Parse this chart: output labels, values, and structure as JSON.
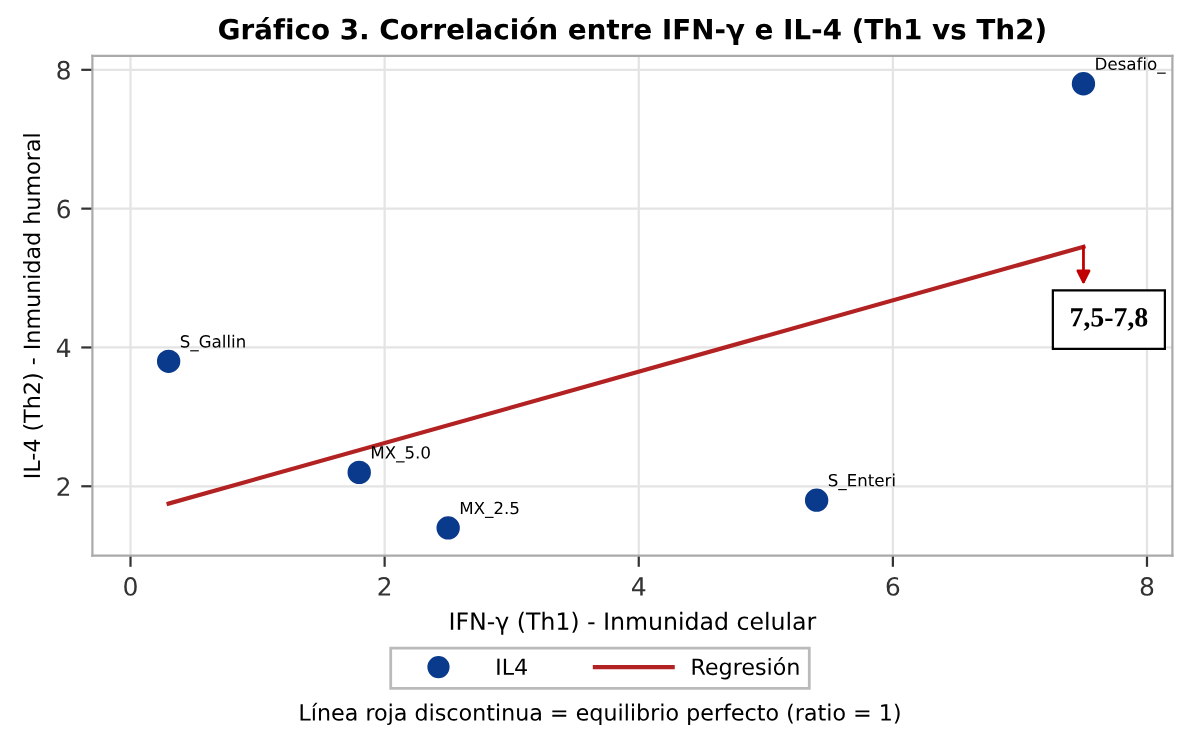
{
  "chart_data": {
    "type": "scatter",
    "title": "Gráfico 3. Correlación entre IFN-γ e IL-4 (Th1 vs Th2)",
    "xlabel": "IFN-γ (Th1) - Inmunidad celular",
    "ylabel": "IL-4 (Th2) - Inmunidad humoral",
    "x": [
      0.3,
      1.8,
      2.5,
      5.4,
      7.5
    ],
    "series": [
      {
        "name": "IL4",
        "color": "#0a3a8c",
        "values": [
          3.8,
          2.2,
          1.4,
          1.8,
          7.8
        ],
        "marker": "circle"
      },
      {
        "name": "Regresión",
        "type": "line",
        "color": "#b22222",
        "x": [
          0.3,
          7.5
        ],
        "values": [
          1.75,
          5.45
        ],
        "line_style": "solid",
        "marker": "none"
      }
    ],
    "annotations": [
      {
        "text": "S_Gallin",
        "x": 0.3,
        "y": 3.8
      },
      {
        "text": "MX_5.0",
        "x": 1.8,
        "y": 2.2
      },
      {
        "text": "MX_2.5",
        "x": 2.5,
        "y": 1.4
      },
      {
        "text": "S_Enteri",
        "x": 5.4,
        "y": 1.8
      },
      {
        "text": "Desafio_",
        "x": 7.5,
        "y": 7.8
      },
      {
        "text": "7,5-7,8",
        "x": 7.5,
        "y": 5.45
      },
      "Línea roja discontinua = equilibrio perfecto (ratio = 1)"
    ],
    "xlim": [
      -0.3,
      8.2
    ],
    "ylim": [
      1.0,
      8.2
    ],
    "xticks": [
      0,
      2,
      4,
      6,
      8
    ],
    "yticks": [
      2,
      4,
      6,
      8
    ],
    "grid": true,
    "legend": "bottom"
  }
}
